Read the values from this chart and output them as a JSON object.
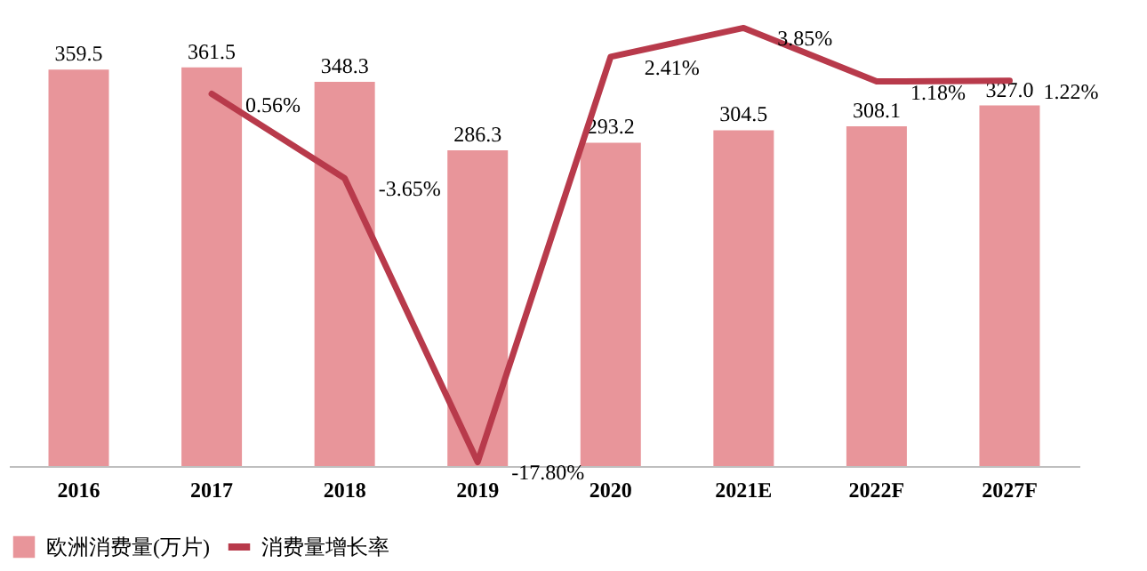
{
  "chart_data": {
    "type": "bar",
    "categories": [
      "2016",
      "2017",
      "2018",
      "2019",
      "2020",
      "2021E",
      "2022F",
      "2027F"
    ],
    "series": [
      {
        "name": "欧洲消费量(万片)",
        "color": "#e8959a",
        "values": [
          359.5,
          361.5,
          348.3,
          286.3,
          293.2,
          304.5,
          308.1,
          327.0
        ],
        "value_labels": [
          "359.5",
          "361.5",
          "348.3",
          "286.3",
          "293.2",
          "304.5",
          "308.1",
          "327.0"
        ]
      },
      {
        "name": "消费量增长率",
        "type": "line",
        "axis": "y2",
        "color": "#b83a4b",
        "values": [
          null,
          0.56,
          -3.65,
          -17.8,
          2.41,
          3.85,
          1.18,
          1.22
        ],
        "value_labels": [
          null,
          "0.56%",
          "-3.65%",
          "-17.80%",
          "2.41%",
          "3.85%",
          "1.18%",
          "1.22%"
        ]
      }
    ],
    "tick_labels": "x",
    "legend": "bottom",
    "marker": "none",
    "line_style": "solid",
    "grid": false
  }
}
